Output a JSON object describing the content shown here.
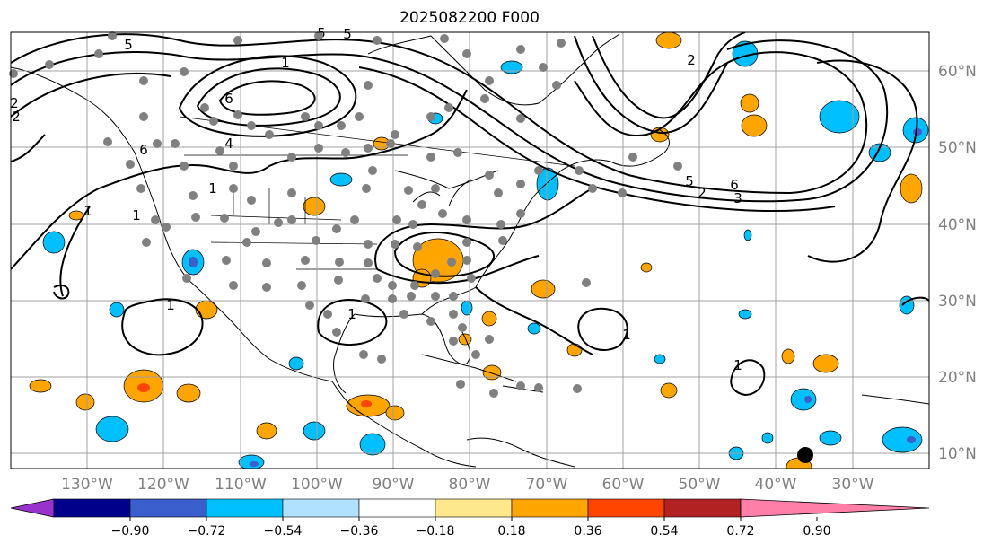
{
  "title": "2025082200 F000",
  "lat_labels": [
    "60°N",
    "50°N",
    "40°N",
    "30°N",
    "20°N",
    "10°N"
  ],
  "lon_labels": [
    "130°W",
    "120°W",
    "110°W",
    "100°W",
    "90°W",
    "80°W",
    "70°W",
    "60°W",
    "50°W",
    "40°W",
    "30°W"
  ],
  "colorbar": {
    "ticks": [
      "−0.90",
      "−0.72",
      "−0.54",
      "−0.36",
      "−0.18",
      "0.18",
      "0.36",
      "0.54",
      "0.72",
      "0.90"
    ],
    "colors": [
      "#9932cc",
      "#00008b",
      "#3a5fcd",
      "#00bfff",
      "#b0e2ff",
      "#ffffff",
      "#fde98b",
      "#ffa500",
      "#ff4500",
      "#b22222",
      "#ff7fa8"
    ]
  },
  "contour_labels": [
    "5",
    "5",
    "6",
    "5",
    "1",
    "6",
    "4",
    "1",
    "1",
    "1",
    "1",
    "2",
    "1",
    "2",
    "1",
    "1",
    "5",
    "6",
    "2",
    "3",
    "2"
  ],
  "station_marker_color": "#808080",
  "highlight_marker_color": "#000000"
}
